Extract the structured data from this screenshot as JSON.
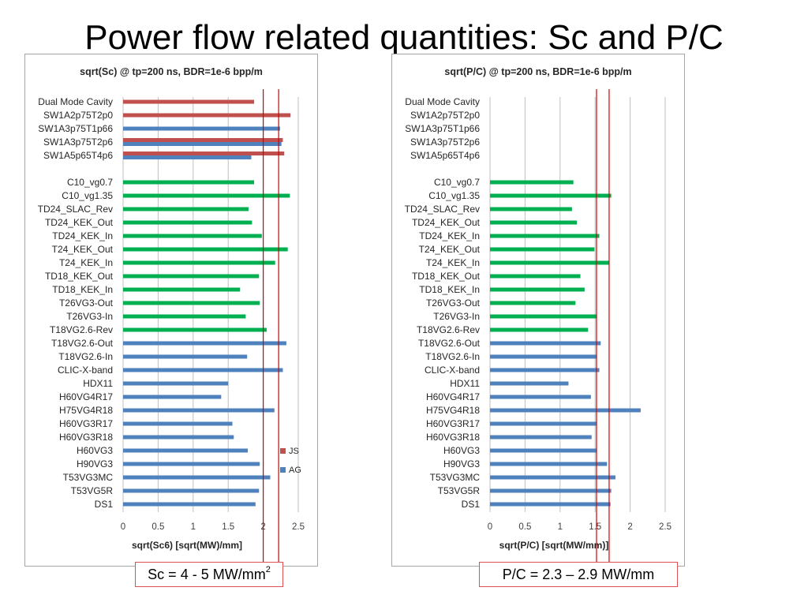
{
  "slide": {
    "title": "Power flow related quantities: Sc and P/C",
    "callout_sc_main": "Sc = 4 - 5 MW/mm",
    "callout_sc_sup": "2",
    "callout_pc": "P/C = 2.3 – 2.9 MW/mm"
  },
  "colors": {
    "js": "#c0504d",
    "ag": "#4f81bd",
    "green": "#00b050",
    "ref_line": "#d40000",
    "grid": "#bfbfbf"
  },
  "chart_data": [
    {
      "type": "bar",
      "orientation": "horizontal",
      "title": "sqrt(Sc) @ tp=200 ns, BDR=1e-6 bpp/m",
      "xlabel": "sqrt(Sc6) [sqrt(MW)/mm]",
      "xlim": [
        0,
        2.5
      ],
      "xticks": [
        "0",
        "0.5",
        "1",
        "1.5",
        "2",
        "2.5"
      ],
      "grid": true,
      "legend": {
        "position": "right",
        "entries": [
          "JS",
          "AG"
        ]
      },
      "reference_lines": [
        2.0,
        2.22
      ],
      "categories": [
        "Dual Mode Cavity",
        "SW1A2p75T2p0",
        "SW1A3p75T1p66",
        "SW1A3p75T2p6",
        "SW1A5p65T4p6",
        "",
        "C10_vg0.7",
        "C10_vg1.35",
        "TD24_SLAC_Rev",
        "TD24_KEK_Out",
        "TD24_KEK_In",
        "T24_KEK_Out",
        "T24_KEK_In",
        "TD18_KEK_Out",
        "TD18_KEK_In",
        "T26VG3-Out",
        "T26VG3-In",
        "T18VG2.6-Rev",
        "T18VG2.6-Out",
        "T18VG2.6-In",
        "CLIC-X-band",
        "HDX11",
        "H60VG4R17",
        "H75VG4R18",
        "H60VG3R17",
        "H60VG3R18",
        "H60VG3",
        "H90VG3",
        "T53VG3MC",
        "T53VG5R",
        "DS1"
      ],
      "series": [
        {
          "name": "JS",
          "values": [
            1.87,
            2.39,
            null,
            2.28,
            2.3,
            null,
            null,
            null,
            null,
            null,
            null,
            null,
            null,
            null,
            null,
            null,
            null,
            null,
            null,
            null,
            null,
            null,
            null,
            null,
            null,
            null,
            null,
            null,
            null,
            null,
            null
          ]
        },
        {
          "name": "AG",
          "values": [
            null,
            null,
            2.24,
            2.26,
            1.83,
            null,
            null,
            null,
            null,
            null,
            null,
            null,
            null,
            null,
            null,
            null,
            null,
            null,
            2.33,
            1.77,
            2.28,
            1.5,
            1.4,
            2.16,
            1.56,
            1.58,
            1.78,
            1.95,
            2.1,
            1.94,
            1.89
          ]
        },
        {
          "name": "",
          "values": [
            null,
            null,
            null,
            null,
            null,
            null,
            1.87,
            2.38,
            1.79,
            1.84,
            1.98,
            2.35,
            2.17,
            1.94,
            1.67,
            1.95,
            1.75,
            2.05,
            null,
            null,
            null,
            null,
            null,
            null,
            null,
            null,
            null,
            null,
            null,
            null,
            null
          ]
        }
      ]
    },
    {
      "type": "bar",
      "orientation": "horizontal",
      "title": "sqrt(P/C) @ tp=200 ns, BDR=1e-6 bpp/m",
      "xlabel": "sqrt(P/C) [sqrt(MW/mm)]",
      "xlim": [
        0,
        2.5
      ],
      "xticks": [
        "0",
        "0.5",
        "1",
        "1.5",
        "2",
        "2.5"
      ],
      "grid": true,
      "reference_lines": [
        1.52,
        1.7
      ],
      "categories": [
        "Dual Mode Cavity",
        "SW1A2p75T2p0",
        "SW1A3p75T1p66",
        "SW1A3p75T2p6",
        "SW1A5p65T4p6",
        "",
        "C10_vg0.7",
        "C10_vg1.35",
        "TD24_SLAC_Rev",
        "TD24_KEK_Out",
        "TD24_KEK_In",
        "T24_KEK_Out",
        "T24_KEK_In",
        "TD18_KEK_Out",
        "TD18_KEK_In",
        "T26VG3-Out",
        "T26VG3-In",
        "T18VG2.6-Rev",
        "T18VG2.6-Out",
        "T18VG2.6-In",
        "CLIC-X-band",
        "HDX11",
        "H60VG4R17",
        "H75VG4R18",
        "H60VG3R17",
        "H60VG3R18",
        "H60VG3",
        "H90VG3",
        "T53VG3MC",
        "T53VG5R",
        "DS1"
      ],
      "series": [
        {
          "name": "AG",
          "values": [
            null,
            null,
            null,
            null,
            null,
            null,
            null,
            null,
            null,
            null,
            null,
            null,
            null,
            null,
            null,
            null,
            null,
            null,
            1.58,
            1.52,
            1.56,
            1.12,
            1.44,
            2.15,
            1.52,
            1.45,
            1.52,
            1.67,
            1.79,
            1.73,
            1.72
          ]
        },
        {
          "name": "",
          "values": [
            null,
            null,
            null,
            null,
            null,
            null,
            1.19,
            1.73,
            1.17,
            1.24,
            1.56,
            1.49,
            1.7,
            1.29,
            1.35,
            1.22,
            1.52,
            1.4,
            null,
            null,
            null,
            null,
            null,
            null,
            null,
            null,
            null,
            null,
            null,
            null,
            null
          ]
        }
      ]
    }
  ]
}
